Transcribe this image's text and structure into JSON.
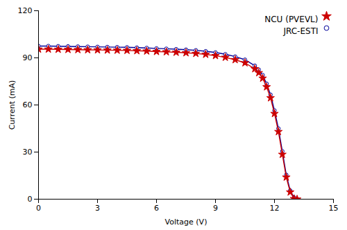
{
  "chart_data": {
    "type": "line",
    "xlabel": "Voltage (V)",
    "ylabel": "Current (mA)",
    "xlim": [
      0,
      15
    ],
    "ylim": [
      0,
      120
    ],
    "xticks": [
      0,
      3,
      6,
      9,
      12,
      15
    ],
    "yticks": [
      0,
      30,
      60,
      90,
      120
    ],
    "grid": false,
    "legend": "upper right",
    "x": [
      0.0,
      0.5,
      1.0,
      1.5,
      2.0,
      2.5,
      3.0,
      3.5,
      4.0,
      4.5,
      5.0,
      5.5,
      6.0,
      6.5,
      7.0,
      7.5,
      8.0,
      8.5,
      9.0,
      9.5,
      10.0,
      10.5,
      11.0,
      11.2,
      11.4,
      11.6,
      11.8,
      12.0,
      12.2,
      12.4,
      12.6,
      12.8,
      13.0,
      13.15
    ],
    "series": [
      {
        "name": "NCU (PVEVL)",
        "color": "#cc0000",
        "marker": "star",
        "values": [
          95.5,
          95.5,
          95.4,
          95.3,
          95.2,
          95.1,
          95.0,
          94.9,
          94.8,
          94.7,
          94.5,
          94.3,
          94.0,
          93.8,
          93.5,
          93.2,
          92.8,
          92.2,
          91.4,
          90.3,
          88.8,
          86.8,
          83.0,
          80.5,
          77.0,
          71.5,
          64.5,
          54.5,
          43.0,
          28.5,
          14.0,
          4.5,
          0.3,
          0.0
        ]
      },
      {
        "name": "JRC-ESTI",
        "color": "#000099",
        "marker": "open_circle",
        "values": [
          97.5,
          97.5,
          97.4,
          97.3,
          97.2,
          97.1,
          97.0,
          96.9,
          96.8,
          96.7,
          96.5,
          96.3,
          96.0,
          95.8,
          95.5,
          95.2,
          94.8,
          94.2,
          93.4,
          92.3,
          90.8,
          88.8,
          85.0,
          82.5,
          79.0,
          73.5,
          66.5,
          56.5,
          45.0,
          30.5,
          15.5,
          5.5,
          1.0,
          0.0
        ]
      }
    ]
  }
}
